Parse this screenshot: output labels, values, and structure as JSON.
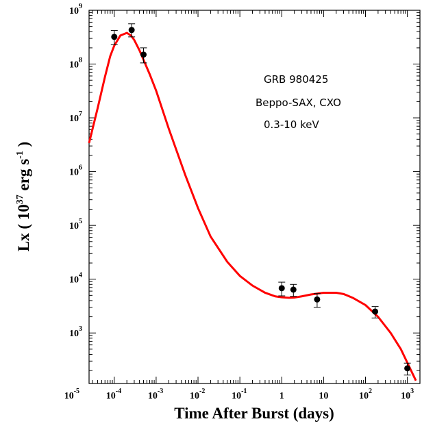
{
  "chart_data": {
    "type": "scatter",
    "x_scale": "log",
    "y_scale": "log",
    "xlim": [
      2.5e-05,
      2000
    ],
    "ylim": [
      115.0,
      1000000000.0
    ],
    "xlabel": "Time After Burst (days)",
    "ylabel": {
      "prefix": "Lx ( 10",
      "exp1": "37",
      "middle": " erg s",
      "exp2": "-1",
      "suffix": " )"
    },
    "x_ticks": [
      {
        "base": "10",
        "exp": "-5",
        "value": 1e-05
      },
      {
        "base": "10",
        "exp": "-4",
        "value": 0.0001
      },
      {
        "base": "10",
        "exp": "-3",
        "value": 0.001
      },
      {
        "base": "10",
        "exp": "-2",
        "value": 0.01
      },
      {
        "base": "10",
        "exp": "-1",
        "value": 0.1
      },
      {
        "base": "1",
        "exp": "",
        "value": 1
      },
      {
        "base": "10",
        "exp": "",
        "value": 10
      },
      {
        "base": "10",
        "exp": "2",
        "value": 100
      },
      {
        "base": "10",
        "exp": "3",
        "value": 1000
      }
    ],
    "y_ticks": [
      {
        "base": "10",
        "exp": "3",
        "value": 1000.0
      },
      {
        "base": "10",
        "exp": "4",
        "value": 10000.0
      },
      {
        "base": "10",
        "exp": "5",
        "value": 100000.0
      },
      {
        "base": "10",
        "exp": "6",
        "value": 1000000.0
      },
      {
        "base": "10",
        "exp": "7",
        "value": 10000000.0
      },
      {
        "base": "10",
        "exp": "8",
        "value": 100000000.0
      },
      {
        "base": "10",
        "exp": "9",
        "value": 1000000000.0
      }
    ],
    "annotations": [
      "GRB 980425",
      "Beppo-SAX, CXO",
      "0.3-10 keV"
    ],
    "points": [
      {
        "x": 0.0001,
        "y": 320000000.0,
        "ylo": 230000000.0,
        "yhi": 420000000.0
      },
      {
        "x": 0.00026,
        "y": 430000000.0,
        "ylo": 320000000.0,
        "yhi": 560000000.0
      },
      {
        "x": 0.0005,
        "y": 150000000.0,
        "ylo": 105000000.0,
        "yhi": 200000000.0
      },
      {
        "x": 1.0,
        "y": 6800.0,
        "ylo": 4900.0,
        "yhi": 8800.0
      },
      {
        "x": 1.9,
        "y": 6400.0,
        "ylo": 4800.0,
        "yhi": 8000.0
      },
      {
        "x": 7.0,
        "y": 4200.0,
        "ylo": 3000.0,
        "yhi": 5400.0
      },
      {
        "x": 170,
        "y": 2500.0,
        "ylo": 1900.0,
        "yhi": 3100.0
      },
      {
        "x": 1000,
        "y": 220.0,
        "ylo": 165.0,
        "yhi": 275.0
      }
    ],
    "model_curve": {
      "color": "#ff0000",
      "x": [
        2.5e-05,
        4e-05,
        6e-05,
        8e-05,
        0.0001,
        0.00014,
        0.0002,
        0.00025,
        0.0003,
        0.0004,
        0.0005,
        0.0007,
        0.001,
        0.002,
        0.005,
        0.01,
        0.02,
        0.05,
        0.1,
        0.2,
        0.4,
        0.7,
        1.0,
        1.5,
        2.0,
        3.0,
        5.0,
        10,
        20,
        30,
        50,
        100,
        200,
        400,
        700,
        1000,
        1600
      ],
      "y": [
        3400000.0,
        15000000.0,
        58000000.0,
        140000000.0,
        220000000.0,
        340000000.0,
        380000000.0,
        340000000.0,
        280000000.0,
        180000000.0,
        120000000.0,
        65000000.0,
        32000000.0,
        6300000.0,
        850000.0,
        210000.0,
        62000.0,
        21000.0,
        11500.0,
        7600.0,
        5600.0,
        4800.0,
        4600.0,
        4500.0,
        4550.0,
        4800.0,
        5200.0,
        5600.0,
        5600.0,
        5300.0,
        4500.0,
        3300.0,
        2000.0,
        1000.0,
        500.0,
        280.0,
        130.0
      ]
    },
    "marker_color": "#000000",
    "grid": false
  }
}
